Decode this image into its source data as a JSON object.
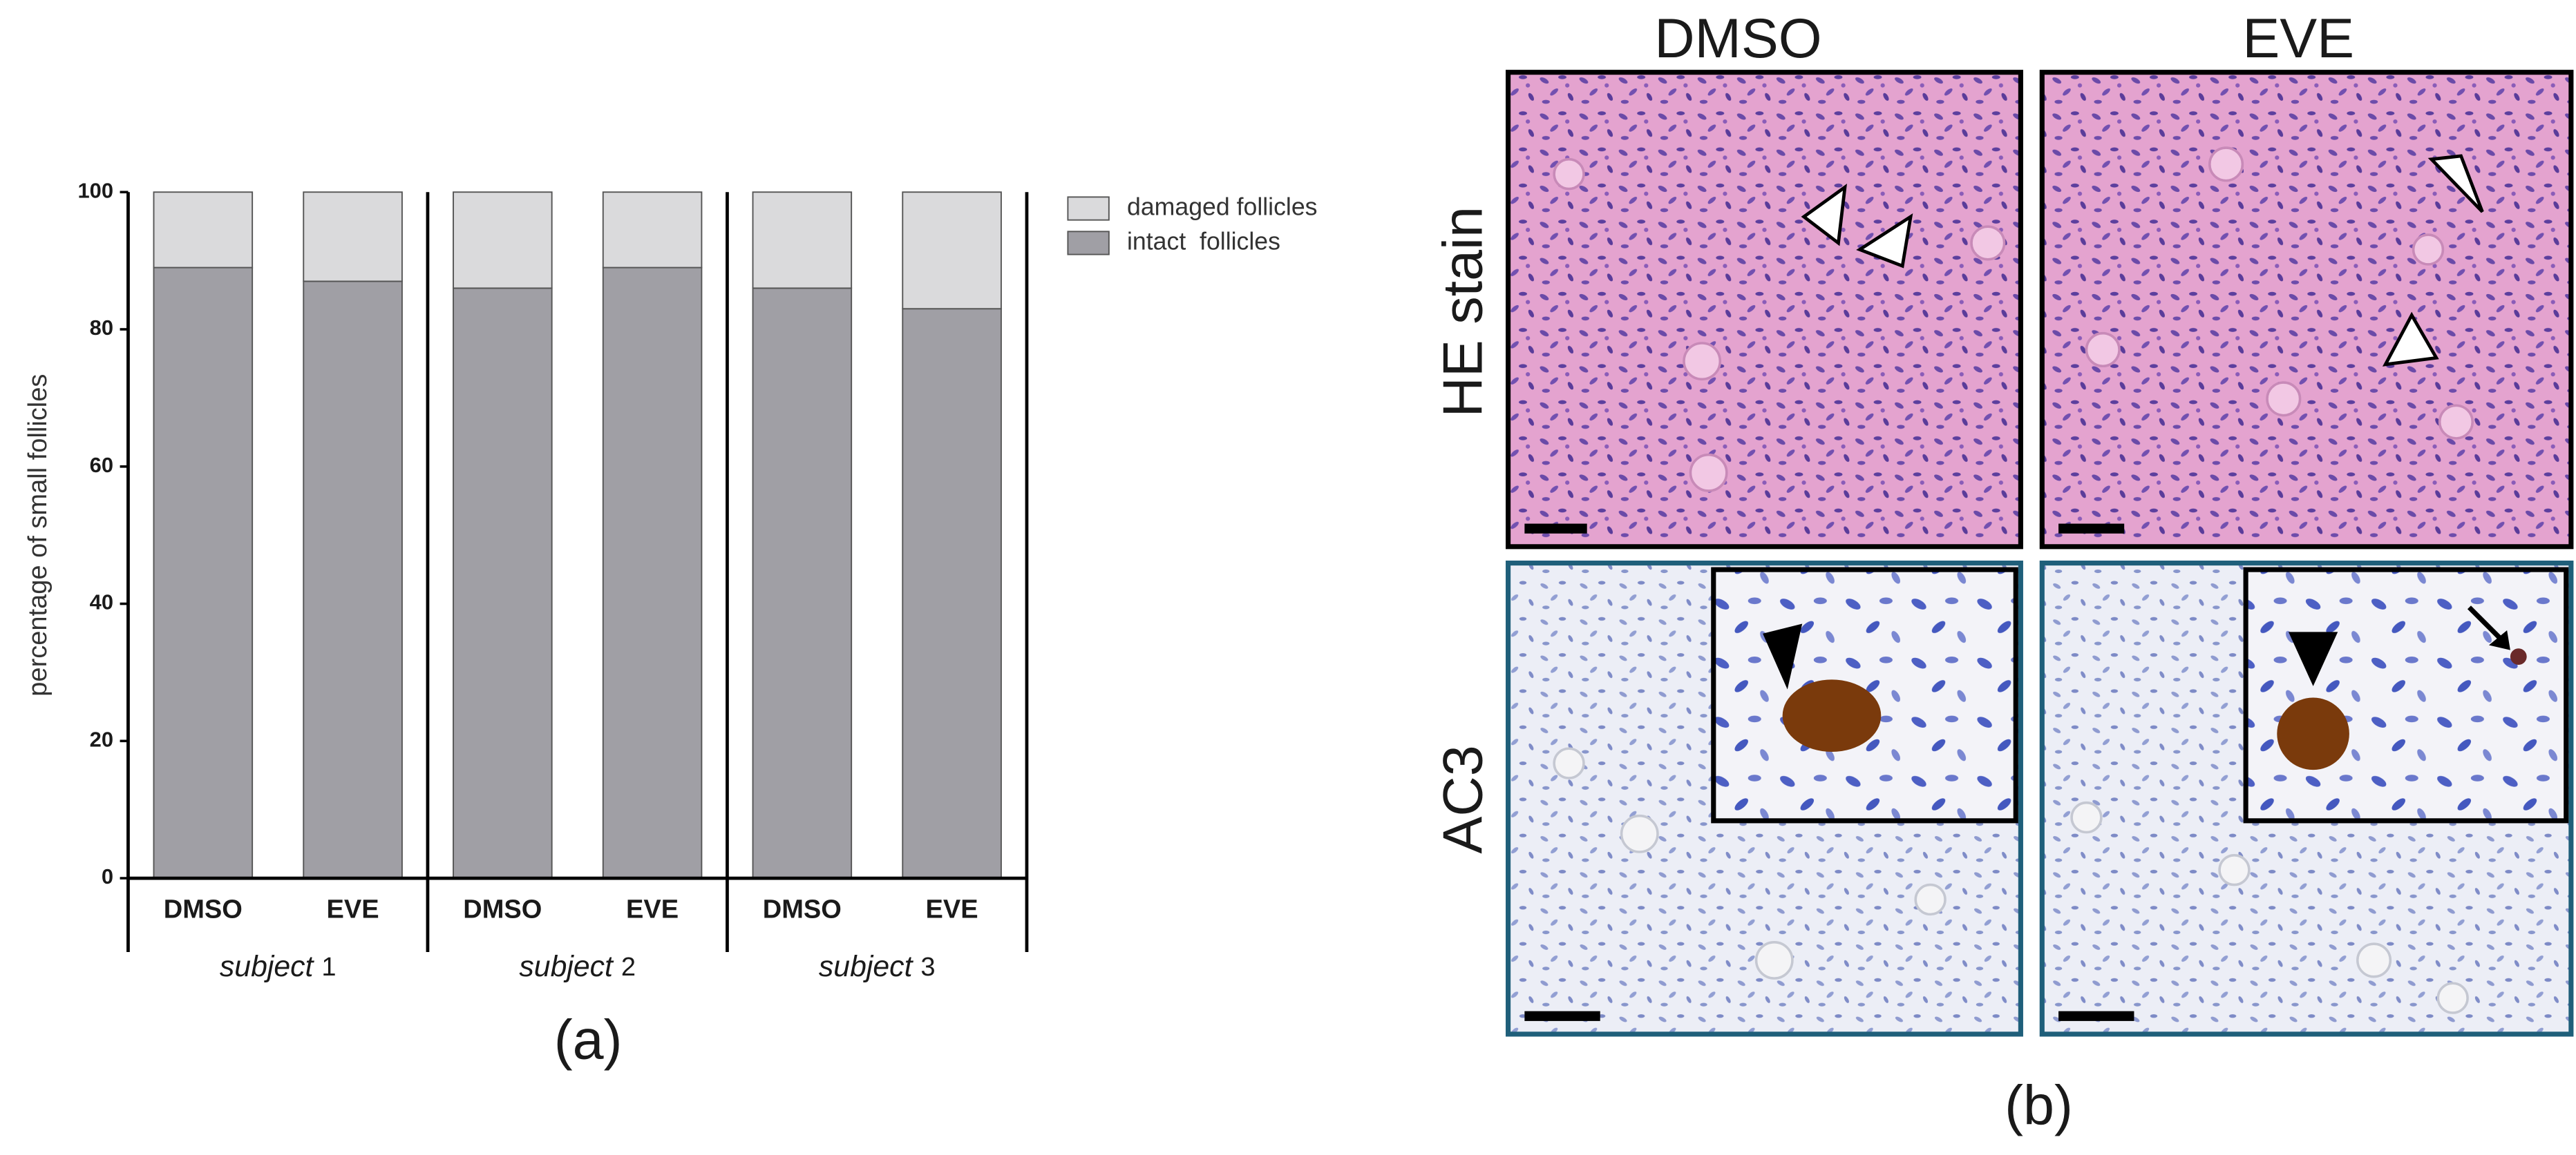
{
  "chart_data": {
    "type": "bar",
    "stacked": true,
    "ylabel": "percentage of small follicles",
    "categories": [
      "DMSO",
      "EVE",
      "DMSO",
      "EVE",
      "DMSO",
      "EVE"
    ],
    "groups": [
      {
        "label": "subject",
        "number": "1"
      },
      {
        "label": "subject",
        "number": "2"
      },
      {
        "label": "subject",
        "number": "3"
      }
    ],
    "series": [
      {
        "name": "intact  follicles",
        "color": "#a09fa5",
        "values": [
          89,
          87,
          86,
          89,
          86,
          83
        ]
      },
      {
        "name": "damaged follicles",
        "color": "#dadadc",
        "values": [
          11,
          13,
          14,
          11,
          14,
          17
        ]
      }
    ],
    "ylim": [
      0,
      100
    ],
    "yticks": [
      0,
      20,
      40,
      60,
      80,
      100
    ],
    "legend": "upper right",
    "panel_label": "(a)"
  },
  "micrographs": {
    "panel_label": "(b)",
    "columns": [
      "DMSO",
      "EVE"
    ],
    "rows": [
      "HE stain",
      "AC3"
    ]
  }
}
